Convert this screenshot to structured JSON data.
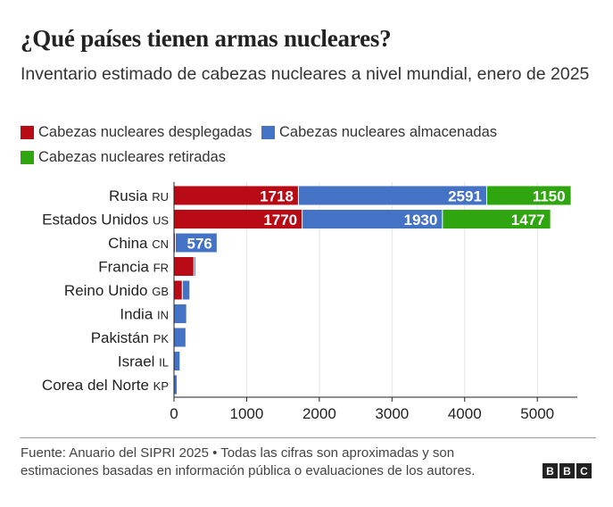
{
  "header": {
    "title": "¿Qué países tienen armas nucleares?",
    "subtitle": "Inventario estimado de cabezas nucleares a nivel mundial, enero de 2025"
  },
  "colors": {
    "deployed": "#b80b15",
    "stored": "#4472c4",
    "retired": "#2fa60f",
    "grid": "#e6e6e6",
    "axis": "#222222"
  },
  "chart_data": {
    "type": "bar",
    "orientation": "horizontal",
    "stacked": true,
    "categories": [
      {
        "name": "Rusia",
        "code": "RU"
      },
      {
        "name": "Estados Unidos",
        "code": "US"
      },
      {
        "name": "China",
        "code": "CN"
      },
      {
        "name": "Francia",
        "code": "FR"
      },
      {
        "name": "Reino Unido",
        "code": "GB"
      },
      {
        "name": "India",
        "code": "IN"
      },
      {
        "name": "Pakistán",
        "code": "PK"
      },
      {
        "name": "Israel",
        "code": "IL"
      },
      {
        "name": "Corea del Norte",
        "code": "KP"
      }
    ],
    "series": [
      {
        "name": "Cabezas nucleares desplegadas",
        "color_key": "deployed",
        "values": [
          1718,
          1770,
          24,
          280,
          120,
          0,
          0,
          0,
          0
        ]
      },
      {
        "name": "Cabezas nucleares almacenadas",
        "color_key": "stored",
        "values": [
          2591,
          1930,
          576,
          10,
          105,
          180,
          170,
          90,
          50
        ]
      },
      {
        "name": "Cabezas nucleares retiradas",
        "color_key": "retired",
        "values": [
          1150,
          1477,
          0,
          0,
          0,
          0,
          0,
          0,
          0
        ]
      }
    ],
    "data_labels": [
      [
        "1718",
        "2591",
        "1150"
      ],
      [
        "1770",
        "1930",
        "1477"
      ],
      [
        "",
        "576",
        ""
      ],
      [
        "",
        "",
        ""
      ],
      [
        "",
        "",
        ""
      ],
      [
        "",
        "",
        ""
      ],
      [
        "",
        "",
        ""
      ],
      [
        "",
        "",
        ""
      ],
      [
        "",
        "",
        ""
      ]
    ],
    "x_ticks": [
      0,
      1000,
      2000,
      3000,
      4000,
      5000
    ],
    "x_tick_labels": [
      "0",
      "1000",
      "2000",
      "3000",
      "4000",
      "5000"
    ],
    "xlim": [
      0,
      5550
    ],
    "grid": true,
    "legend_position": "top"
  },
  "footer": {
    "source": "Fuente: Anuario del SIPRI 2025 • Todas las cifras son aproximadas y son estimaciones basadas en información pública o evaluaciones de los autores.",
    "logo_letters": [
      "B",
      "B",
      "C"
    ]
  }
}
